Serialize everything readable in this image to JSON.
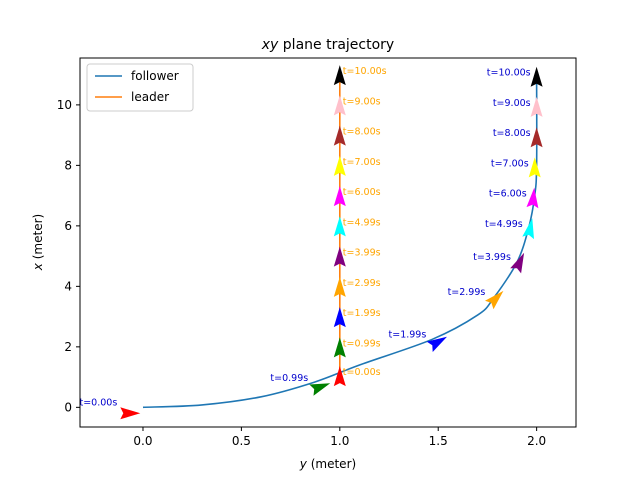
{
  "chart_data": {
    "type": "line",
    "title_var": "xy",
    "title_rest": " plane trajectory",
    "xlabel_var": "y",
    "xlabel_rest": " (meter)",
    "ylabel_var": "x",
    "ylabel_rest": " (meter)",
    "xlim": [
      -0.32,
      2.2
    ],
    "ylim": [
      -0.65,
      11.55
    ],
    "xticks": [
      0.0,
      0.5,
      1.0,
      1.5,
      2.0
    ],
    "xtick_labels": [
      "0.0",
      "0.5",
      "1.0",
      "1.5",
      "2.0"
    ],
    "yticks": [
      0,
      2,
      4,
      6,
      8,
      10
    ],
    "ytick_labels": [
      "0",
      "2",
      "4",
      "6",
      "8",
      "10"
    ],
    "grid": false,
    "legend_position": "top-left",
    "series": [
      {
        "name": "follower",
        "color": "#1f77b4",
        "points": [
          [
            0.0,
            0.0
          ],
          [
            0.3,
            0.08
          ],
          [
            0.6,
            0.35
          ],
          [
            0.87,
            0.83
          ],
          [
            1.1,
            1.4
          ],
          [
            1.47,
            2.25
          ],
          [
            1.7,
            3.05
          ],
          [
            1.78,
            3.6
          ],
          [
            1.9,
            4.8
          ],
          [
            1.96,
            5.95
          ],
          [
            1.99,
            7.0
          ],
          [
            2.0,
            8.0
          ],
          [
            2.0,
            11.0
          ]
        ]
      },
      {
        "name": "leader",
        "color": "#ff7f0e",
        "points": [
          [
            1.0,
            1.0
          ],
          [
            1.0,
            11.0
          ]
        ]
      }
    ],
    "annotations": {
      "follower": [
        {
          "label": "t=0.00s",
          "y": -0.1,
          "x": 0.0,
          "color": "#ff0000",
          "angle": 0
        },
        {
          "label": "t=0.99s",
          "y": 0.87,
          "x": 0.8,
          "color": "#008000",
          "angle": -20
        },
        {
          "label": "t=1.99s",
          "y": 1.47,
          "x": 2.25,
          "color": "#0000ff",
          "angle": -30
        },
        {
          "label": "t=2.99s",
          "y": 1.77,
          "x": 3.65,
          "color": "#ffa500",
          "angle": -45
        },
        {
          "label": "t=3.99s",
          "y": 1.9,
          "x": 4.8,
          "color": "#800080",
          "angle": -65
        },
        {
          "label": "t=4.99s",
          "y": 1.96,
          "x": 5.9,
          "color": "#00ffff",
          "angle": -78
        },
        {
          "label": "t=6.00s",
          "y": 1.98,
          "x": 6.9,
          "color": "#ff00ff",
          "angle": -85
        },
        {
          "label": "t=7.00s",
          "y": 1.99,
          "x": 7.9,
          "color": "#ffff00",
          "angle": -90
        },
        {
          "label": "t=8.00s",
          "y": 2.0,
          "x": 8.9,
          "color": "#a52a2a",
          "angle": -90
        },
        {
          "label": "t=9.00s",
          "y": 2.0,
          "x": 9.9,
          "color": "#ffc0cb",
          "angle": -90
        },
        {
          "label": "t=10.00s",
          "y": 2.0,
          "x": 10.9,
          "color": "#000000",
          "angle": -90
        }
      ],
      "leader": [
        {
          "label": "t=0.00s",
          "y": 1.0,
          "x": 1.0,
          "color": "#ff0000",
          "angle": -90
        },
        {
          "label": "t=0.99s",
          "y": 1.0,
          "x": 1.95,
          "color": "#008000",
          "angle": -90
        },
        {
          "label": "t=1.99s",
          "y": 1.0,
          "x": 2.95,
          "color": "#0000ff",
          "angle": -90
        },
        {
          "label": "t=2.99s",
          "y": 1.0,
          "x": 3.95,
          "color": "#ffa500",
          "angle": -90
        },
        {
          "label": "t=3.99s",
          "y": 1.0,
          "x": 4.95,
          "color": "#800080",
          "angle": -90
        },
        {
          "label": "t=4.99s",
          "y": 1.0,
          "x": 5.95,
          "color": "#00ffff",
          "angle": -90
        },
        {
          "label": "t=6.00s",
          "y": 1.0,
          "x": 6.95,
          "color": "#ff00ff",
          "angle": -90
        },
        {
          "label": "t=7.00s",
          "y": 1.0,
          "x": 7.95,
          "color": "#ffff00",
          "angle": -90
        },
        {
          "label": "t=8.00s",
          "y": 1.0,
          "x": 8.95,
          "color": "#a52a2a",
          "angle": -90
        },
        {
          "label": "t=9.00s",
          "y": 1.0,
          "x": 9.95,
          "color": "#ffc0cb",
          "angle": -90
        },
        {
          "label": "t=10.00s",
          "y": 1.0,
          "x": 10.95,
          "color": "#000000",
          "angle": -90
        }
      ],
      "follower_label_color": "#0000cd",
      "leader_label_color": "#ffa500"
    }
  }
}
